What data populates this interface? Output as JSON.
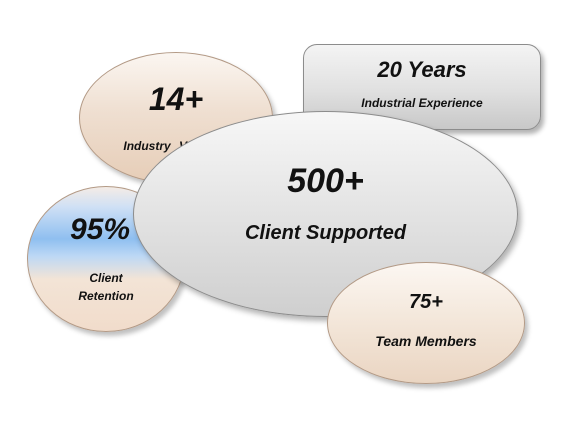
{
  "stats": {
    "retention": {
      "value": "95%",
      "label_line1": "Client",
      "label_line2": "Retention"
    },
    "years": {
      "value": "20 Years",
      "label": "Industrial Experience"
    },
    "verticals": {
      "value": "14+",
      "label": "Industry Verticals"
    },
    "clients": {
      "value": "500+",
      "label": "Client Supported"
    },
    "team": {
      "value": "75+",
      "label": "Team Members"
    }
  }
}
